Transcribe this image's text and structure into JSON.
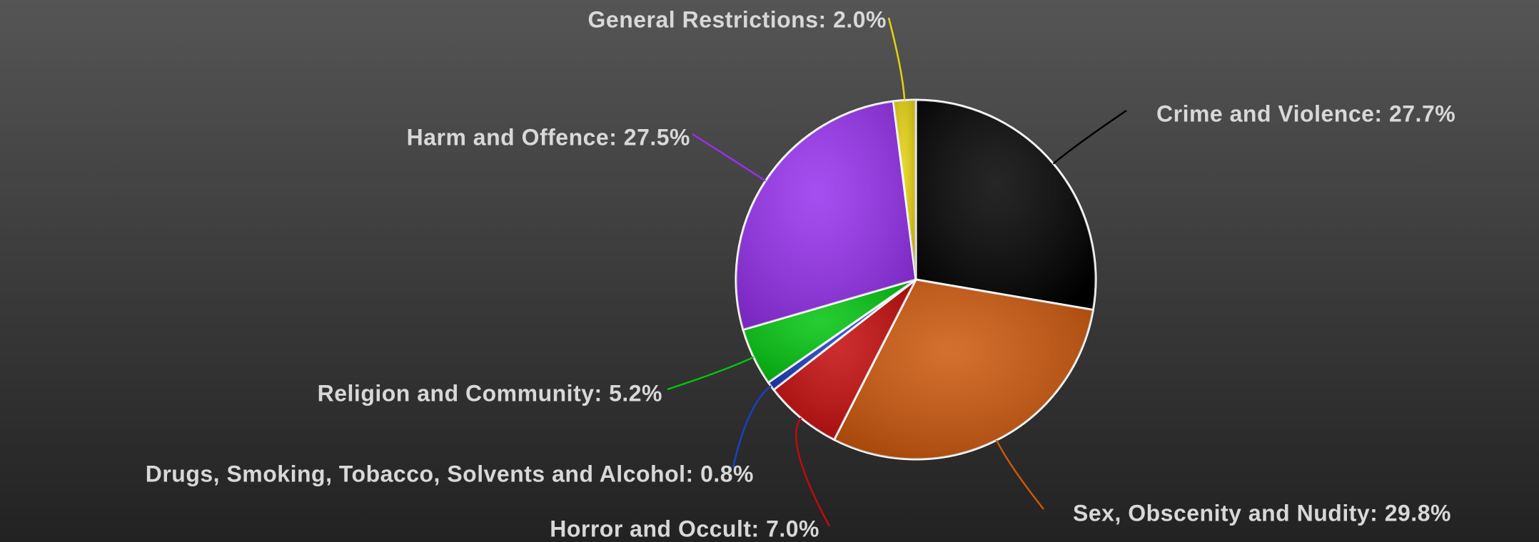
{
  "chart_data": {
    "type": "pie",
    "values": [
      27.7,
      29.8,
      7.0,
      0.8,
      5.2,
      27.5,
      2.0
    ],
    "value_labels": [
      "Crime and Violence: 27.7%",
      "Sex, Obscenity and Nudity: 29.8%",
      "Horror and Occult: 7.0%",
      "Drugs, Smoking, Tobacco, Solvents and Alcohol: 0.8%",
      "Religion and Community: 5.2%",
      "Harm and Offence: 27.5%",
      "General Restrictions: 2.0%"
    ],
    "colors": [
      "#000000",
      "#cc560a",
      "#c40a0a",
      "#1c3fc4",
      "#00c40e",
      "#9630ee",
      "#e6d20e"
    ]
  }
}
